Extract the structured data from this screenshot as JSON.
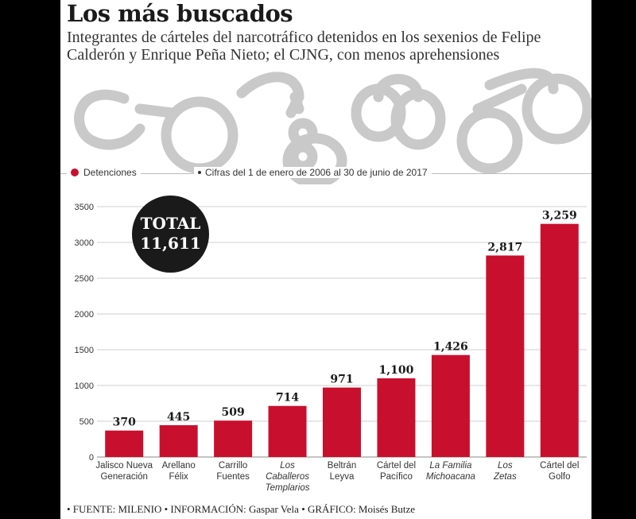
{
  "header": {
    "title": "Los más buscados",
    "subtitle": "Integrantes de cárteles del narcotráfico detenidos en los sexenios de Felipe Calderón y Enrique Peña Nieto; el CJNG, con menos aprehensiones"
  },
  "legend": {
    "series_label": "Detenciones",
    "period_note": "Cifras del 1 de enero de 2006 al 30 de junio de 2017"
  },
  "total": {
    "label": "TOTAL",
    "value": "11,611"
  },
  "footer": "• FUENTE: MILENIO • INFORMACIÓN: Gaspar Vela • GRÁFICO: Moisés Butze",
  "colors": {
    "bar": "#c8102e",
    "text": "#1a1a1a",
    "grid": "#cfcfcf"
  },
  "chart_data": {
    "type": "bar",
    "categories": [
      [
        "Jalisco Nueva",
        "Generación"
      ],
      [
        "Arellano",
        "Félix"
      ],
      [
        "Carrillo",
        "Fuentes"
      ],
      [
        "Los",
        "Caballeros",
        "Templarios"
      ],
      [
        "Beltrán",
        "Leyva"
      ],
      [
        "Cártel del",
        "Pacífico"
      ],
      [
        "La Familia",
        "Michoacana"
      ],
      [
        "Los",
        "Zetas"
      ],
      [
        "Cártel del",
        "Golfo"
      ]
    ],
    "italic": [
      false,
      false,
      false,
      true,
      false,
      false,
      true,
      true,
      false
    ],
    "values": [
      370,
      445,
      509,
      714,
      971,
      1100,
      1426,
      2817,
      3259
    ],
    "value_labels": [
      "370",
      "445",
      "509",
      "714",
      "971",
      "1,100",
      "1,426",
      "2,817",
      "3,259"
    ],
    "series": [
      {
        "name": "Detenciones"
      }
    ],
    "yticks": [
      0,
      500,
      1000,
      1500,
      2000,
      2500,
      3000,
      3500
    ],
    "ylim": [
      0,
      3500
    ],
    "grid": true
  }
}
